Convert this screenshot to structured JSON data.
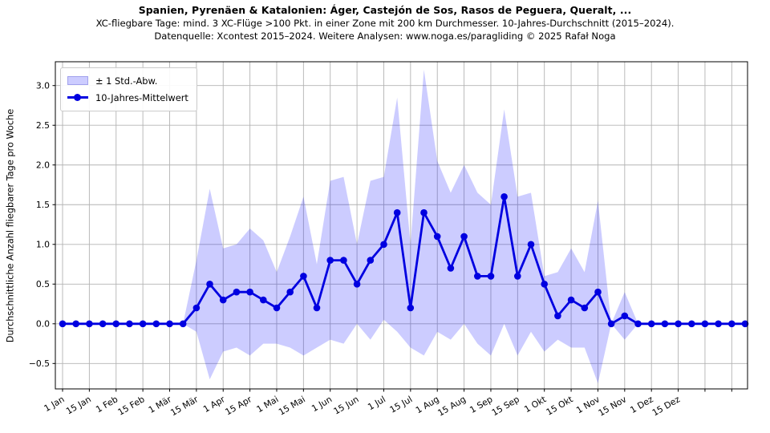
{
  "chart_data": {
    "type": "line",
    "title": "Spanien, Pyrenäen & Katalonien: Áger, Castejón de Sos, Rasos de Peguera, Queralt, ...",
    "subtitle": "XC-fliegbare Tage: mind. 3 XC-Flüge >100 Pkt. in einer Zone mit 200 km Durchmesser. 10-Jahres-Durchschnitt (2015–2024).",
    "source": "Datenquelle: Xcontest 2015–2024. Weitere Analysen: www.noga.es/paragliding © 2025 Rafał Noga",
    "ylabel": "Durchschnittliche Anzahl fliegbarer Tage pro Woche",
    "legend": {
      "band": "± 1 Std.-Abw.",
      "mean": "10-Jahres-Mittelwert"
    },
    "legend_position": "upper left",
    "grid": true,
    "weeks": 52,
    "x_tick_every_weeks": 2,
    "x_tick_labels": [
      "1 Jan",
      "15 Jan",
      "1 Feb",
      "15 Feb",
      "1 Mär",
      "15 Mär",
      "1 Apr",
      "15 Apr",
      "1 Mai",
      "15 Mai",
      "1 Jun",
      "15 Jun",
      "1 Jul",
      "15 Jul",
      "1 Aug",
      "15 Aug",
      "1 Sep",
      "15 Sep",
      "1 Okt",
      "15 Okt",
      "1 Nov",
      "15 Nov",
      "1 Dez",
      "15 Dez"
    ],
    "series": [
      {
        "name": "10-Jahres-Mittelwert",
        "values": [
          0,
          0,
          0,
          0,
          0,
          0,
          0,
          0,
          0,
          0,
          0.2,
          0.5,
          0.3,
          0.4,
          0.4,
          0.3,
          0.2,
          0.4,
          0.6,
          0.2,
          0.8,
          0.8,
          0.5,
          0.8,
          1.0,
          1.4,
          0.2,
          1.4,
          1.1,
          0.7,
          1.1,
          0.6,
          0.6,
          1.6,
          0.6,
          1.0,
          0.5,
          0.1,
          0.3,
          0.2,
          0.4,
          0.0,
          0.1,
          0,
          0,
          0,
          0,
          0,
          0,
          0,
          0,
          0
        ]
      },
      {
        "name": "band_upper (+1 std)",
        "values": [
          0,
          0,
          0,
          0,
          0,
          0,
          0,
          0,
          0,
          0,
          0.8,
          1.7,
          0.95,
          1.0,
          1.2,
          1.05,
          0.65,
          1.1,
          1.6,
          0.75,
          1.8,
          1.85,
          1.0,
          1.8,
          1.85,
          2.85,
          1.0,
          3.2,
          2.05,
          1.65,
          2.0,
          1.65,
          1.5,
          2.7,
          1.6,
          1.65,
          0.6,
          0.65,
          0.95,
          0.65,
          1.55,
          0.0,
          0.4,
          0,
          0,
          0,
          0,
          0,
          0,
          0,
          0,
          0
        ]
      },
      {
        "name": "band_lower (-1 std)",
        "values": [
          0,
          0,
          0,
          0,
          0,
          0,
          0,
          0,
          0,
          0,
          -0.1,
          -0.7,
          -0.35,
          -0.3,
          -0.4,
          -0.25,
          -0.25,
          -0.3,
          -0.4,
          -0.3,
          -0.2,
          -0.25,
          0.0,
          -0.2,
          0.05,
          -0.1,
          -0.3,
          -0.4,
          -0.1,
          -0.2,
          0.0,
          -0.25,
          -0.4,
          0.0,
          -0.4,
          -0.1,
          -0.35,
          -0.2,
          -0.3,
          -0.3,
          -0.75,
          0.0,
          -0.2,
          0,
          0,
          0,
          0,
          0,
          0,
          0,
          0,
          0
        ]
      }
    ],
    "yticks": [
      -0.5,
      0.0,
      0.5,
      1.0,
      1.5,
      2.0,
      2.5,
      3.0
    ],
    "ylim": [
      -0.82,
      3.3
    ],
    "colors": {
      "line": "#0000e0",
      "band_fill_rgba": "0,0,255,0.2",
      "grid": "#b3b3b3",
      "spine": "#000000",
      "legend_border": "#cccccc"
    }
  }
}
